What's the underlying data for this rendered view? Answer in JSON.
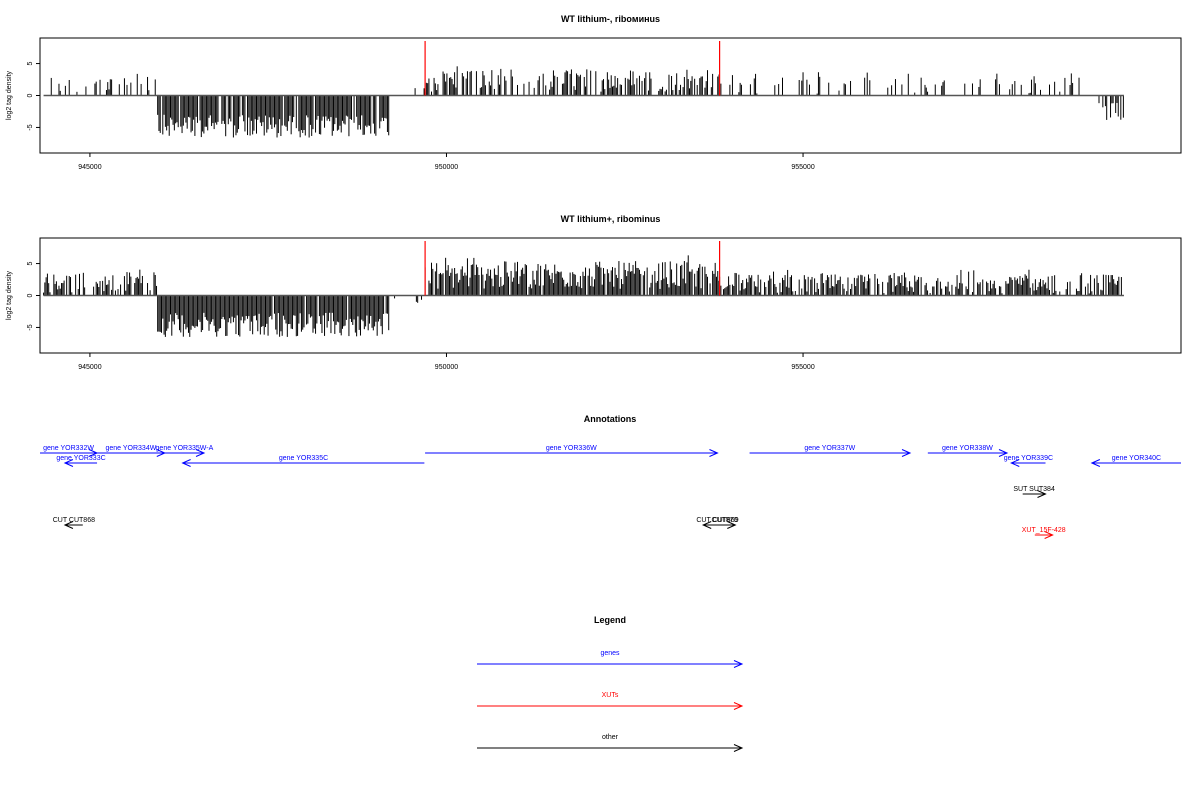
{
  "chart_data": [
    {
      "type": "bar",
      "title": "WT lithium-, riboминus",
      "ylabel": "log2 tag density",
      "xlim": [
        944300,
        960300
      ],
      "ylim": [
        -9,
        9
      ],
      "yticks": [
        -5,
        0,
        5
      ],
      "xticks": [
        945000,
        950000,
        955000
      ],
      "highlight_x": [
        949700,
        953830
      ],
      "highlight_color": "#ff0000",
      "profile_color": "#000000",
      "segments": [
        {
          "x_start": 944350,
          "x_end": 945950,
          "sign": 1,
          "mean": 1.6,
          "amp": 1.5,
          "density": 0.25,
          "outlier": 0.05
        },
        {
          "x_start": 945950,
          "x_end": 949200,
          "sign": -1,
          "mean": 4.8,
          "amp": 1.8,
          "density": 0.9,
          "outlier": 0.0
        },
        {
          "x_start": 949200,
          "x_end": 949700,
          "sign": 1,
          "mean": 0.6,
          "amp": 0.6,
          "density": 0.05,
          "outlier": 0.0
        },
        {
          "x_start": 949700,
          "x_end": 953830,
          "sign": 1,
          "mean": 2.4,
          "amp": 1.8,
          "density": 0.55,
          "outlier": 0.02
        },
        {
          "x_start": 953830,
          "x_end": 958900,
          "sign": 1,
          "mean": 1.6,
          "amp": 1.4,
          "density": 0.12,
          "outlier": 0.12
        },
        {
          "x_start": 958900,
          "x_end": 959150,
          "sign": 1,
          "mean": 0.4,
          "amp": 0.3,
          "density": 0.0,
          "outlier": 0.0
        },
        {
          "x_start": 959150,
          "x_end": 959500,
          "sign": -1,
          "mean": 2.6,
          "amp": 1.5,
          "density": 0.7,
          "outlier": 0.0
        }
      ]
    },
    {
      "type": "bar",
      "title": "WT lithium+, ribominus",
      "ylabel": "log2 tag density",
      "xlim": [
        944300,
        960300
      ],
      "ylim": [
        -9,
        9
      ],
      "yticks": [
        -5,
        0,
        5
      ],
      "xticks": [
        945000,
        950000,
        955000
      ],
      "highlight_x": [
        949700,
        953830
      ],
      "highlight_color": "#ff0000",
      "profile_color": "#000000",
      "segments": [
        {
          "x_start": 944350,
          "x_end": 945950,
          "sign": 1,
          "mean": 2.0,
          "amp": 1.6,
          "density": 0.6,
          "outlier": 0.08
        },
        {
          "x_start": 945950,
          "x_end": 949200,
          "sign": -1,
          "mean": 4.6,
          "amp": 1.9,
          "density": 0.95,
          "outlier": 0.0
        },
        {
          "x_start": 949200,
          "x_end": 949700,
          "sign": -1,
          "mean": 1.0,
          "amp": 0.8,
          "density": 0.08,
          "outlier": 0.0
        },
        {
          "x_start": 949700,
          "x_end": 953830,
          "sign": 1,
          "mean": 3.2,
          "amp": 2.2,
          "density": 0.9,
          "outlier": 0.03
        },
        {
          "x_start": 953830,
          "x_end": 959500,
          "sign": 1,
          "mean": 1.8,
          "amp": 1.5,
          "density": 0.7,
          "outlier": 0.1
        }
      ]
    }
  ],
  "annotations": {
    "title": "Annotations",
    "xlim": [
      944300,
      960300
    ],
    "items": [
      {
        "label": "gene YOR332W",
        "x_start": 944300,
        "x_end": 945100,
        "strand": "+",
        "row": 0,
        "type": "genes"
      },
      {
        "label": "gene YOR333C",
        "x_start": 945100,
        "x_end": 944650,
        "strand": "-",
        "row": 1,
        "type": "genes"
      },
      {
        "label": "gene YOR334W",
        "x_start": 945100,
        "x_end": 946050,
        "strand": "+",
        "row": 0,
        "type": "genes"
      },
      {
        "label": "gene YOR335W-A",
        "x_start": 946050,
        "x_end": 946600,
        "strand": "+",
        "row": 0,
        "type": "genes"
      },
      {
        "label": "gene YOR335C",
        "x_start": 949690,
        "x_end": 946300,
        "strand": "-",
        "row": 1,
        "type": "genes"
      },
      {
        "label": "gene YOR336W",
        "x_start": 949700,
        "x_end": 953800,
        "strand": "+",
        "row": 0,
        "type": "genes"
      },
      {
        "label": "gene YOR337W",
        "x_start": 954250,
        "x_end": 956500,
        "strand": "+",
        "row": 0,
        "type": "genes"
      },
      {
        "label": "gene YOR338W",
        "x_start": 956750,
        "x_end": 957860,
        "strand": "+",
        "row": 0,
        "type": "genes"
      },
      {
        "label": "gene YOR339C",
        "x_start": 958400,
        "x_end": 957920,
        "strand": "-",
        "row": 1,
        "type": "genes"
      },
      {
        "label": "gene YOR340C",
        "x_start": 960300,
        "x_end": 959050,
        "strand": "-",
        "row": 1,
        "type": "genes"
      },
      {
        "label": "SUT SUT384",
        "x_start": 958080,
        "x_end": 958400,
        "strand": "+",
        "row": 3,
        "type": "other"
      },
      {
        "label": "CUT CUT868",
        "x_start": 944900,
        "x_end": 944650,
        "strand": "-",
        "row": 4,
        "type": "other"
      },
      {
        "label": "CUT CUT869",
        "x_start": 954000,
        "x_end": 953600,
        "strand": "-",
        "row": 4,
        "type": "other"
      },
      {
        "label": "CUT870",
        "x_start": 953750,
        "x_end": 954050,
        "strand": "+",
        "row": 4,
        "type": "other"
      },
      {
        "label": "XUT_15F-428",
        "x_start": 958250,
        "x_end": 958500,
        "strand": "+",
        "row": 5,
        "type": "XUTs"
      }
    ]
  },
  "legend": {
    "title": "Legend",
    "entries": [
      {
        "label": "genes",
        "color": "#0000ff"
      },
      {
        "label": "XUTs",
        "color": "#ff0000"
      },
      {
        "label": "other",
        "color": "#000000"
      }
    ]
  },
  "colors": {
    "genes": "#0000ff",
    "XUTs": "#ff0000",
    "other": "#000000"
  }
}
